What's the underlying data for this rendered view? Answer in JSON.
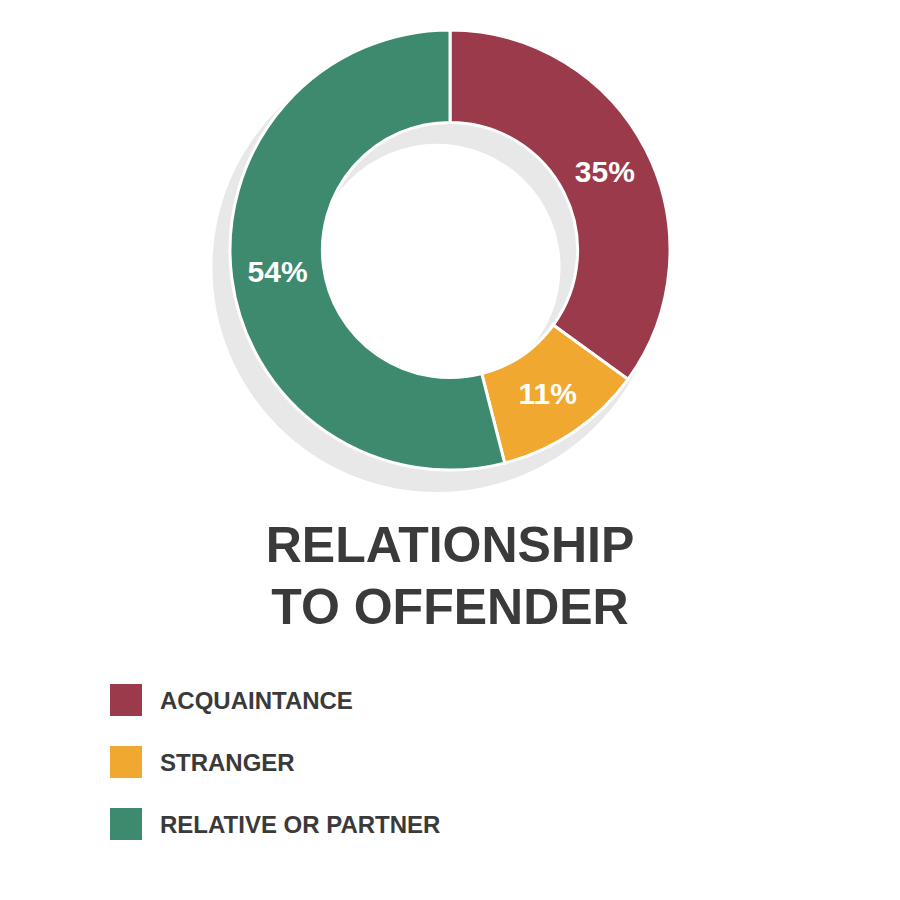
{
  "chart_data": {
    "type": "pie",
    "title": "RELATIONSHIP\nTO OFFENDER",
    "categories": [
      "ACQUAINTANCE",
      "STRANGER",
      "RELATIVE OR PARTNER"
    ],
    "values": [
      35,
      11,
      54
    ],
    "value_labels": [
      "35%",
      "11%",
      "54%"
    ],
    "colors": [
      "#9b3a4a",
      "#f0a830",
      "#3d8a6e"
    ],
    "data_labels": true,
    "legend": "bottom"
  }
}
